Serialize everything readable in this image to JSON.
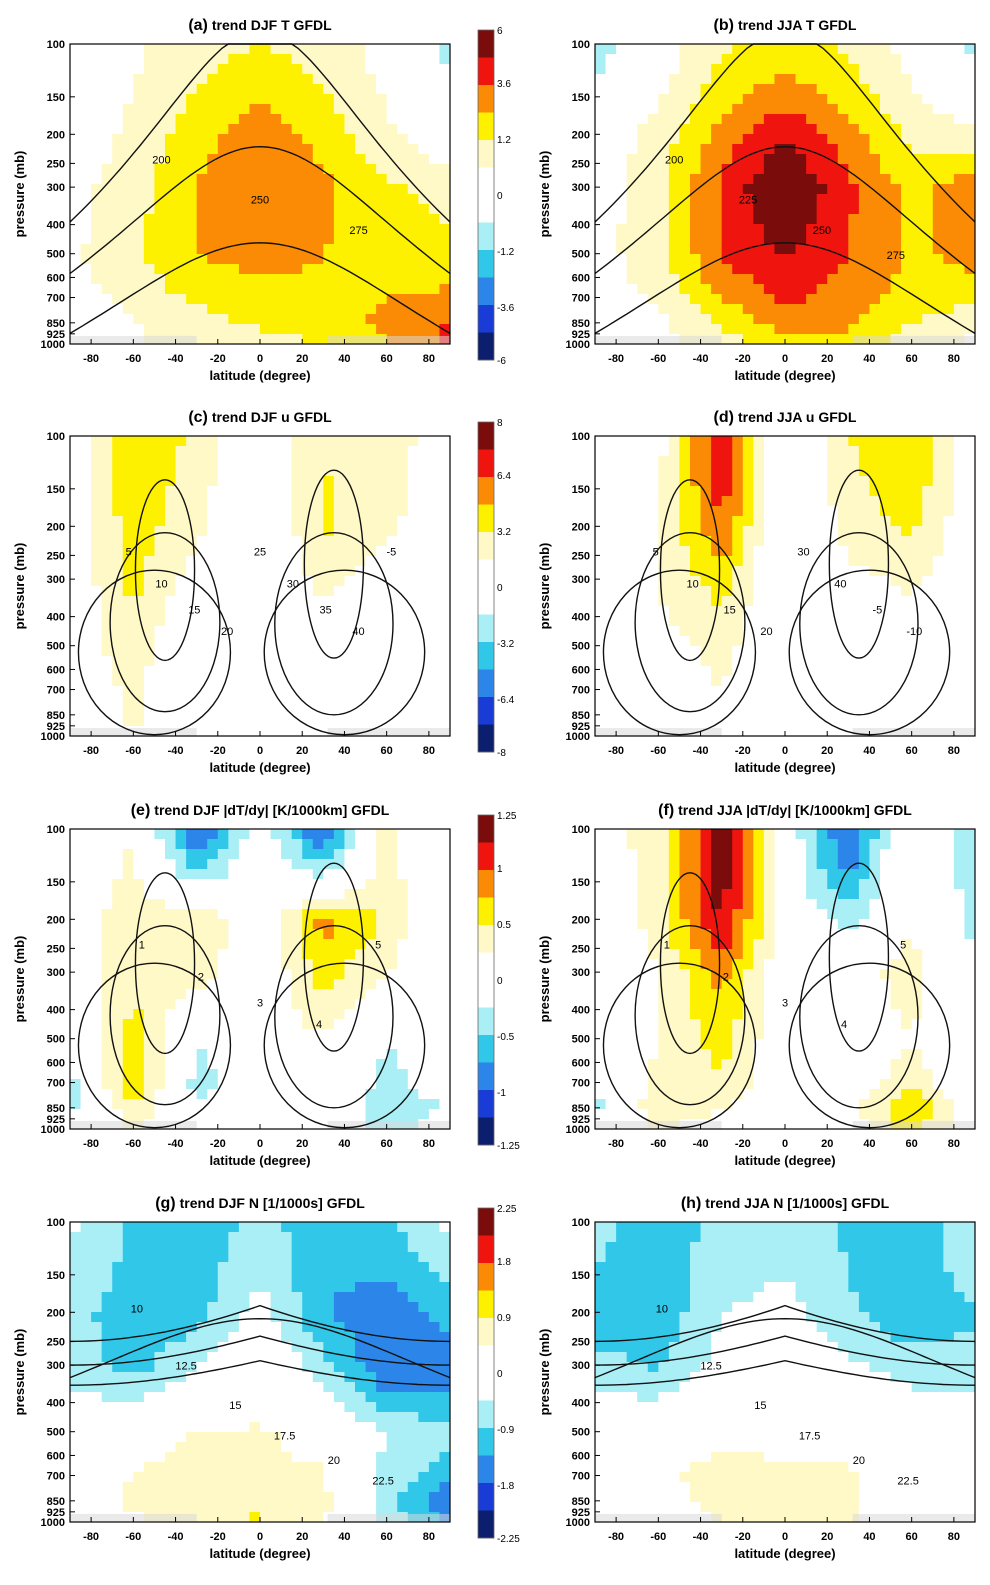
{
  "colors": {
    "scale": [
      "#0b1f6e",
      "#1a3cd6",
      "#2c86ea",
      "#31c7e8",
      "#a9eff5",
      "#ffffff",
      "#ffffff",
      "#fff8c7",
      "#fef100",
      "#fb8a04",
      "#f0140f",
      "#7a0c0c"
    ],
    "land_mask": "#d9d9d9",
    "contour": "#111111"
  },
  "chart_data": [
    {
      "id": "a",
      "type": "heatmap",
      "title_label": "(a)",
      "title": "trend DJF T GFDL",
      "xlabel": "latitude (degree)",
      "ylabel": "pressure (mb)",
      "x_ticks": [
        -80,
        -60,
        -40,
        -20,
        0,
        20,
        40,
        60,
        80
      ],
      "y_ticks": [
        100,
        150,
        200,
        250,
        300,
        400,
        500,
        600,
        700,
        850,
        925,
        1000
      ],
      "xlim": [
        -90,
        90
      ],
      "ylim": [
        1000,
        100
      ],
      "colorbar_ticks": [
        "6",
        "3.6",
        "1.2",
        "0",
        "-1.2",
        "-3.6",
        "-6"
      ],
      "contour_labels": [
        "200",
        "250",
        "275"
      ],
      "trend_field": {
        "lat": [
          -90,
          -60,
          -30,
          0,
          30,
          60,
          90
        ],
        "pressure": [
          100,
          200,
          300,
          500,
          700,
          850,
          1000
        ],
        "values": [
          [
            0.4,
            0.8,
            1.6,
            2.0,
            1.6,
            0.6,
            -1.4
          ],
          [
            0.4,
            1.2,
            2.6,
            3.8,
            2.6,
            1.2,
            0.2
          ],
          [
            0.6,
            1.6,
            3.0,
            4.0,
            3.2,
            2.2,
            1.6
          ],
          [
            0.8,
            1.8,
            3.0,
            3.4,
            3.0,
            2.6,
            2.4
          ],
          [
            0.4,
            1.4,
            2.2,
            2.6,
            2.8,
            3.0,
            3.2
          ],
          [
            0.2,
            1.0,
            1.6,
            2.2,
            2.6,
            3.2,
            4.0
          ],
          [
            0.2,
            0.8,
            1.4,
            1.6,
            2.0,
            2.8,
            4.4
          ]
        ]
      }
    },
    {
      "id": "b",
      "type": "heatmap",
      "title_label": "(b)",
      "title": "trend JJA T GFDL",
      "xlabel": "latitude (degree)",
      "ylabel": "pressure (mb)",
      "x_ticks": [
        -80,
        -60,
        -40,
        -20,
        0,
        20,
        40,
        60,
        80
      ],
      "y_ticks": [
        100,
        150,
        200,
        250,
        300,
        400,
        500,
        600,
        700,
        850,
        925,
        1000
      ],
      "xlim": [
        -90,
        90
      ],
      "ylim": [
        1000,
        100
      ],
      "contour_labels": [
        "200",
        "225",
        "250",
        "275"
      ],
      "trend_field": {
        "lat": [
          -90,
          -60,
          -30,
          0,
          30,
          60,
          90
        ],
        "pressure": [
          100,
          200,
          300,
          500,
          700,
          850,
          1000
        ],
        "values": [
          [
            -1.6,
            0.4,
            1.8,
            2.4,
            1.8,
            0.6,
            -1.4
          ],
          [
            0.2,
            1.4,
            3.4,
            5.0,
            3.4,
            1.8,
            1.2
          ],
          [
            0.4,
            1.8,
            4.2,
            6.2,
            4.2,
            2.6,
            3.8
          ],
          [
            0.6,
            1.6,
            4.0,
            5.0,
            4.0,
            2.8,
            3.4
          ],
          [
            0.4,
            1.2,
            3.2,
            4.2,
            3.6,
            2.6,
            2.2
          ],
          [
            0.2,
            0.8,
            2.0,
            3.6,
            3.2,
            2.0,
            1.2
          ],
          [
            0.2,
            0.6,
            1.6,
            2.6,
            2.4,
            1.6,
            0.8
          ]
        ]
      }
    },
    {
      "id": "c",
      "type": "heatmap",
      "title_label": "(c)",
      "title": "trend DJF u GFDL",
      "xlabel": "latitude (degree)",
      "ylabel": "pressure (mb)",
      "x_ticks": [
        -80,
        -60,
        -40,
        -20,
        0,
        20,
        40,
        60,
        80
      ],
      "y_ticks": [
        100,
        150,
        200,
        250,
        300,
        400,
        500,
        600,
        700,
        850,
        925,
        1000
      ],
      "xlim": [
        -90,
        90
      ],
      "ylim": [
        1000,
        100
      ],
      "colorbar_ticks": [
        "8",
        "6.4",
        "3.2",
        "0",
        "-3.2",
        "-6.4",
        "-8"
      ],
      "contour_labels": [
        "5",
        "10",
        "15",
        "20",
        "25",
        "30",
        "35",
        "40",
        "-5"
      ],
      "trend_field": {
        "lat": [
          -90,
          -60,
          -30,
          0,
          30,
          60,
          90
        ],
        "pressure": [
          100,
          200,
          300,
          500,
          700,
          850,
          1000
        ],
        "values": [
          [
            0.4,
            3.8,
            2.4,
            -0.4,
            2.6,
            2.2,
            0.2
          ],
          [
            0.2,
            3.4,
            1.6,
            -0.8,
            3.0,
            1.6,
            0.2
          ],
          [
            0.2,
            3.0,
            0.6,
            -0.6,
            1.8,
            0.4,
            0.0
          ],
          [
            0.2,
            2.4,
            -0.8,
            0.0,
            0.4,
            -0.4,
            0.0
          ],
          [
            0.0,
            1.6,
            -1.0,
            0.0,
            -0.8,
            0.4,
            0.0
          ],
          [
            0.0,
            1.8,
            -0.6,
            0.0,
            -0.6,
            0.6,
            0.0
          ],
          [
            0.0,
            1.2,
            -0.4,
            0.0,
            -0.4,
            0.4,
            0.0
          ]
        ]
      }
    },
    {
      "id": "d",
      "type": "heatmap",
      "title_label": "(d)",
      "title": "trend JJA u GFDL",
      "xlabel": "latitude (degree)",
      "ylabel": "pressure (mb)",
      "x_ticks": [
        -80,
        -60,
        -40,
        -20,
        0,
        20,
        40,
        60,
        80
      ],
      "y_ticks": [
        100,
        150,
        200,
        250,
        300,
        400,
        500,
        600,
        700,
        850,
        925,
        1000
      ],
      "xlim": [
        -90,
        90
      ],
      "ylim": [
        1000,
        100
      ],
      "contour_labels": [
        "5",
        "10",
        "15",
        "20",
        "30",
        "40",
        "-5",
        "-10"
      ],
      "trend_field": {
        "lat": [
          -90,
          -60,
          -30,
          0,
          30,
          60,
          90
        ],
        "pressure": [
          100,
          200,
          300,
          500,
          700,
          850,
          1000
        ],
        "values": [
          [
            0.4,
            0.8,
            6.8,
            -0.6,
            2.6,
            4.0,
            0.2
          ],
          [
            0.2,
            1.2,
            5.4,
            -1.0,
            1.8,
            3.0,
            0.0
          ],
          [
            0.0,
            1.4,
            3.2,
            -0.8,
            1.0,
            1.6,
            0.0
          ],
          [
            0.0,
            0.8,
            1.8,
            -0.4,
            0.2,
            0.4,
            0.0
          ],
          [
            0.0,
            0.2,
            1.4,
            -0.8,
            0.0,
            0.2,
            0.0
          ],
          [
            0.0,
            0.0,
            1.0,
            -0.6,
            0.0,
            0.0,
            0.0
          ],
          [
            0.0,
            0.0,
            0.6,
            -0.4,
            0.0,
            0.0,
            0.0
          ]
        ]
      }
    },
    {
      "id": "e",
      "type": "heatmap",
      "title_label": "(e)",
      "title": "trend DJF |dT/dy| [K/1000km] GFDL",
      "xlabel": "latitude (degree)",
      "ylabel": "pressure (mb)",
      "x_ticks": [
        -80,
        -60,
        -40,
        -20,
        0,
        20,
        40,
        60,
        80
      ],
      "y_ticks": [
        100,
        150,
        200,
        250,
        300,
        400,
        500,
        600,
        700,
        850,
        925,
        1000
      ],
      "xlim": [
        -90,
        90
      ],
      "ylim": [
        1000,
        100
      ],
      "colorbar_ticks": [
        "1.25",
        "1",
        "0.5",
        "0",
        "-0.5",
        "-1",
        "-1.25"
      ],
      "contour_labels": [
        "1",
        "2",
        "3",
        "4",
        "5"
      ],
      "trend_field": {
        "lat": [
          -90,
          -60,
          -30,
          0,
          30,
          60,
          90
        ],
        "pressure": [
          100,
          200,
          300,
          500,
          700,
          850,
          1000
        ],
        "values": [
          [
            0.1,
            0.2,
            -0.9,
            0.0,
            -0.9,
            0.3,
            -0.2
          ],
          [
            0.1,
            0.3,
            0.4,
            0.0,
            0.7,
            0.4,
            -0.2
          ],
          [
            0.0,
            0.4,
            0.3,
            0.0,
            0.5,
            0.2,
            0.0
          ],
          [
            -0.2,
            0.5,
            -0.2,
            0.0,
            0.2,
            -0.2,
            0.0
          ],
          [
            -0.3,
            0.6,
            -0.3,
            0.0,
            0.1,
            -0.3,
            0.0
          ],
          [
            -0.3,
            0.4,
            -0.2,
            0.0,
            0.1,
            -0.4,
            -0.2
          ],
          [
            0.0,
            0.2,
            0.0,
            0.0,
            0.0,
            -0.3,
            0.0
          ]
        ]
      }
    },
    {
      "id": "f",
      "type": "heatmap",
      "title_label": "(f)",
      "title": "trend JJA |dT/dy| [K/1000km] GFDL",
      "xlabel": "latitude (degree)",
      "ylabel": "pressure (mb)",
      "x_ticks": [
        -80,
        -60,
        -40,
        -20,
        0,
        20,
        40,
        60,
        80
      ],
      "y_ticks": [
        100,
        150,
        200,
        250,
        300,
        400,
        500,
        600,
        700,
        850,
        925,
        1000
      ],
      "xlim": [
        -90,
        90
      ],
      "ylim": [
        1000,
        100
      ],
      "contour_labels": [
        "1",
        "2",
        "3",
        "4",
        "5"
      ],
      "trend_field": {
        "lat": [
          -90,
          -60,
          -30,
          0,
          30,
          60,
          90
        ],
        "pressure": [
          100,
          200,
          300,
          500,
          700,
          850,
          1000
        ],
        "values": [
          [
            0.1,
            0.3,
            1.2,
            0.0,
            -0.9,
            0.2,
            -0.4
          ],
          [
            0.0,
            0.3,
            1.1,
            0.0,
            -0.3,
            0.2,
            -0.3
          ],
          [
            0.0,
            0.2,
            0.7,
            0.0,
            0.1,
            0.3,
            -0.1
          ],
          [
            -0.1,
            0.2,
            0.5,
            0.0,
            0.1,
            0.2,
            0.0
          ],
          [
            -0.2,
            0.3,
            0.4,
            0.0,
            0.1,
            0.3,
            0.0
          ],
          [
            -0.3,
            0.4,
            0.2,
            0.0,
            0.1,
            0.7,
            0.0
          ],
          [
            0.0,
            0.2,
            0.1,
            0.0,
            0.0,
            0.5,
            0.0
          ]
        ]
      }
    },
    {
      "id": "g",
      "type": "heatmap",
      "title_label": "(g)",
      "title": "trend DJF N [1/1000s] GFDL",
      "xlabel": "latitude (degree)",
      "ylabel": "pressure (mb)",
      "x_ticks": [
        -80,
        -60,
        -40,
        -20,
        0,
        20,
        40,
        60,
        80
      ],
      "y_ticks": [
        100,
        150,
        200,
        250,
        300,
        400,
        500,
        600,
        700,
        850,
        925,
        1000
      ],
      "xlim": [
        -90,
        90
      ],
      "ylim": [
        1000,
        100
      ],
      "colorbar_ticks": [
        "2.25",
        "1.8",
        "0.9",
        "0",
        "-0.9",
        "-1.8",
        "-2.25"
      ],
      "contour_labels": [
        "10",
        "12.5",
        "15",
        "17.5",
        "20",
        "22.5"
      ],
      "trend_field": {
        "lat": [
          -90,
          -60,
          -30,
          0,
          30,
          60,
          90
        ],
        "pressure": [
          100,
          200,
          300,
          500,
          700,
          850,
          1000
        ],
        "values": [
          [
            -0.3,
            -0.8,
            -1.0,
            -0.6,
            -1.0,
            -0.8,
            -0.3
          ],
          [
            -0.6,
            -1.0,
            -0.9,
            -0.2,
            -1.1,
            -1.4,
            -1.0
          ],
          [
            -0.5,
            -0.9,
            -0.4,
            0.2,
            -0.6,
            -1.5,
            -1.4
          ],
          [
            0.0,
            0.2,
            0.4,
            0.4,
            0.3,
            -0.4,
            -0.6
          ],
          [
            0.0,
            0.4,
            0.5,
            0.4,
            0.4,
            -0.5,
            -1.0
          ],
          [
            0.0,
            0.5,
            0.5,
            0.4,
            0.5,
            -0.6,
            -1.6
          ],
          [
            0.0,
            0.3,
            0.6,
            0.9,
            0.4,
            -0.4,
            -1.2
          ]
        ]
      }
    },
    {
      "id": "h",
      "type": "heatmap",
      "title_label": "(h)",
      "title": "trend JJA N [1/1000s] GFDL",
      "xlabel": "latitude (degree)",
      "ylabel": "pressure (mb)",
      "x_ticks": [
        -80,
        -60,
        -40,
        -20,
        0,
        20,
        40,
        60,
        80
      ],
      "y_ticks": [
        100,
        150,
        200,
        250,
        300,
        400,
        500,
        600,
        700,
        850,
        925,
        1000
      ],
      "xlim": [
        -90,
        90
      ],
      "ylim": [
        1000,
        100
      ],
      "contour_labels": [
        "10",
        "12.5",
        "15",
        "17.5",
        "20",
        "22.5"
      ],
      "trend_field": {
        "lat": [
          -90,
          -60,
          -30,
          0,
          30,
          60,
          90
        ],
        "pressure": [
          100,
          200,
          300,
          500,
          700,
          850,
          1000
        ],
        "values": [
          [
            -0.6,
            -1.0,
            -0.6,
            -0.6,
            -0.8,
            -1.0,
            -0.4
          ],
          [
            -1.0,
            -1.0,
            -0.4,
            -0.2,
            -0.7,
            -1.0,
            -0.8
          ],
          [
            -0.6,
            -0.8,
            -0.2,
            0.1,
            -0.3,
            -0.6,
            -0.6
          ],
          [
            0.0,
            0.2,
            0.3,
            0.3,
            0.3,
            0.2,
            0.0
          ],
          [
            0.0,
            0.3,
            0.5,
            0.4,
            0.4,
            0.3,
            0.0
          ],
          [
            0.0,
            0.2,
            0.5,
            0.5,
            0.4,
            0.2,
            0.0
          ],
          [
            0.0,
            0.2,
            0.4,
            0.5,
            0.4,
            0.2,
            0.0
          ]
        ]
      }
    }
  ]
}
